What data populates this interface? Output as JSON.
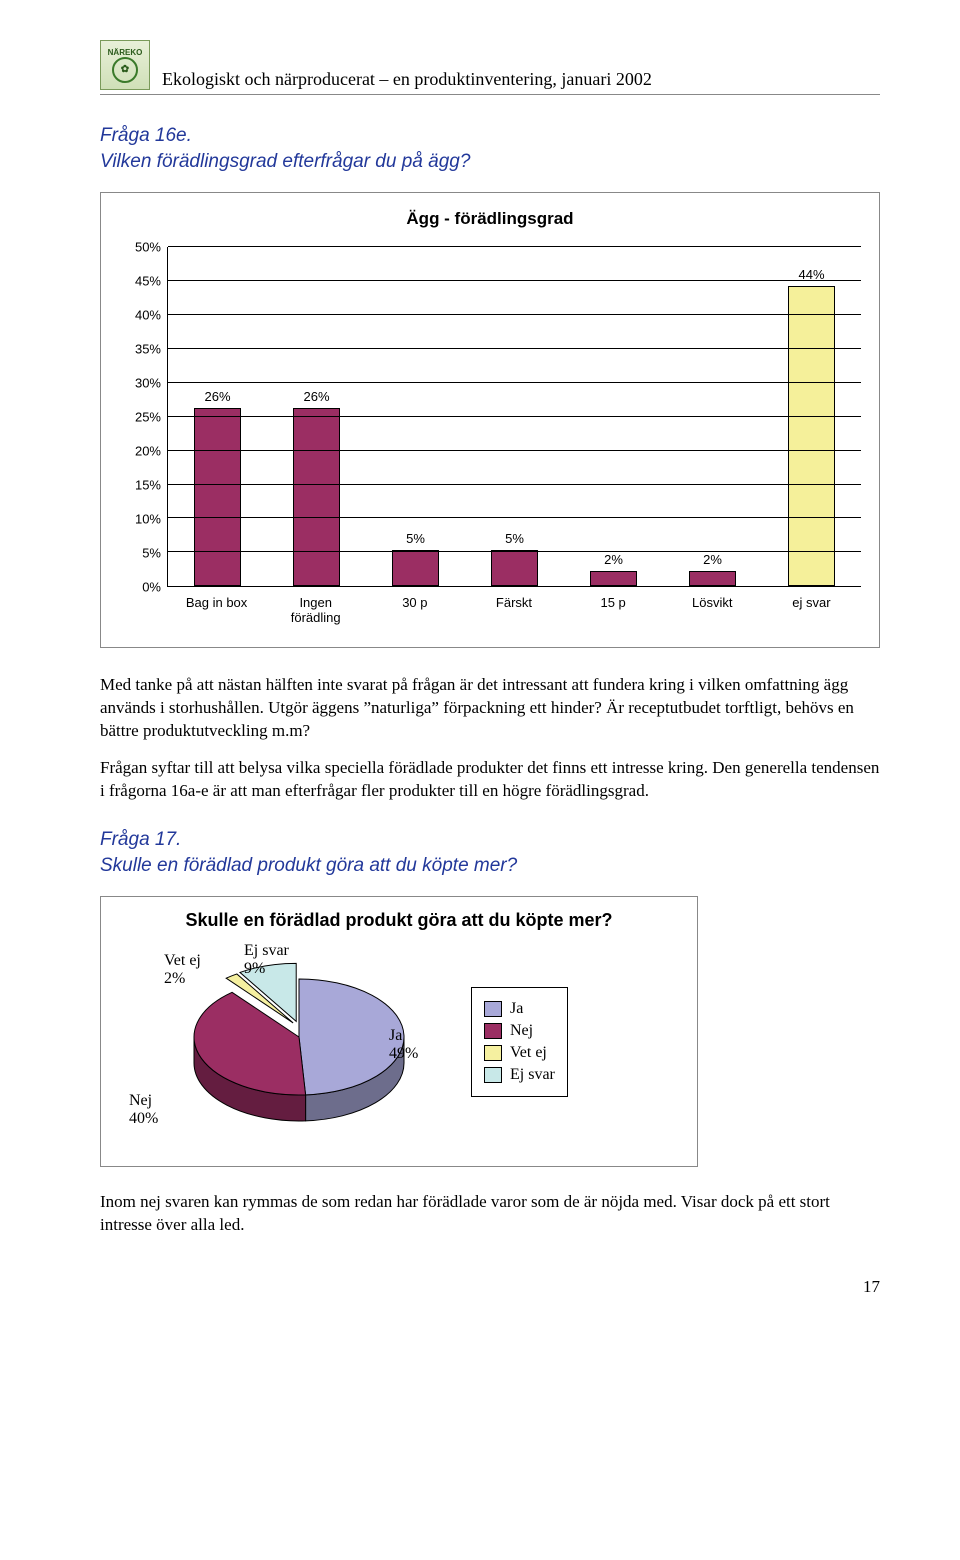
{
  "header": {
    "logo_text": "NÄREKO",
    "running_title": "Ekologiskt och närproducerat – en produktinventering, januari 2002"
  },
  "q16e": {
    "heading_line1": "Fråga 16e.",
    "heading_line2": "Vilken förädlingsgrad efterfrågar du på ägg?"
  },
  "bar_chart": {
    "type": "bar",
    "title": "Ägg - förädlingsgrad",
    "y_max": 50,
    "y_tick_step": 5,
    "grid_color": "#000000",
    "background_color": "#ffffff",
    "label_fontsize": 13,
    "title_fontsize": 17,
    "bar_width_pct": 60,
    "categories": [
      "Bag in box",
      "Ingen förädling",
      "30 p",
      "Färskt",
      "15 p",
      "Lösvikt",
      "ej svar"
    ],
    "values": [
      26,
      26,
      5,
      5,
      2,
      2,
      44
    ],
    "bar_colors": [
      "#9b2e63",
      "#9b2e63",
      "#9b2e63",
      "#9b2e63",
      "#9b2e63",
      "#9b2e63",
      "#f5f09a"
    ]
  },
  "para1": "Med tanke på att nästan hälften inte svarat på frågan är det intressant att fundera kring i vilken omfattning ägg används i storhushållen. Utgör äggens ”naturliga” förpackning ett hinder? Är receptutbudet torftligt, behövs en bättre produktutveckling m.m?",
  "para2": "Frågan syftar till att belysa vilka speciella förädlade produkter det finns ett intresse kring. Den generella tendensen i frågorna 16a-e är att man efterfrågar fler produkter till en högre förädlingsgrad.",
  "q17": {
    "heading_line1": "Fråga 17.",
    "heading_line2": "Skulle en förädlad produkt göra att du köpte mer?"
  },
  "pie_chart": {
    "type": "pie",
    "title": "Skulle en förädlad produkt göra att du köpte mer?",
    "title_fontsize": 18,
    "background_color": "#ffffff",
    "slices": [
      {
        "label": "Ja",
        "value": 49,
        "color": "#a8a8d8"
      },
      {
        "label": "Nej",
        "value": 40,
        "color": "#9b2e63"
      },
      {
        "label": "Vet ej",
        "value": 2,
        "color": "#f5f0a0"
      },
      {
        "label": "Ej svar",
        "value": 9,
        "color": "#c8e8e8"
      }
    ],
    "outline_color": "#000000"
  },
  "para3": "Inom nej svaren kan rymmas de som redan har förädlade varor som de är nöjda med. Visar dock på ett stort intresse över alla led.",
  "page_number": "17"
}
